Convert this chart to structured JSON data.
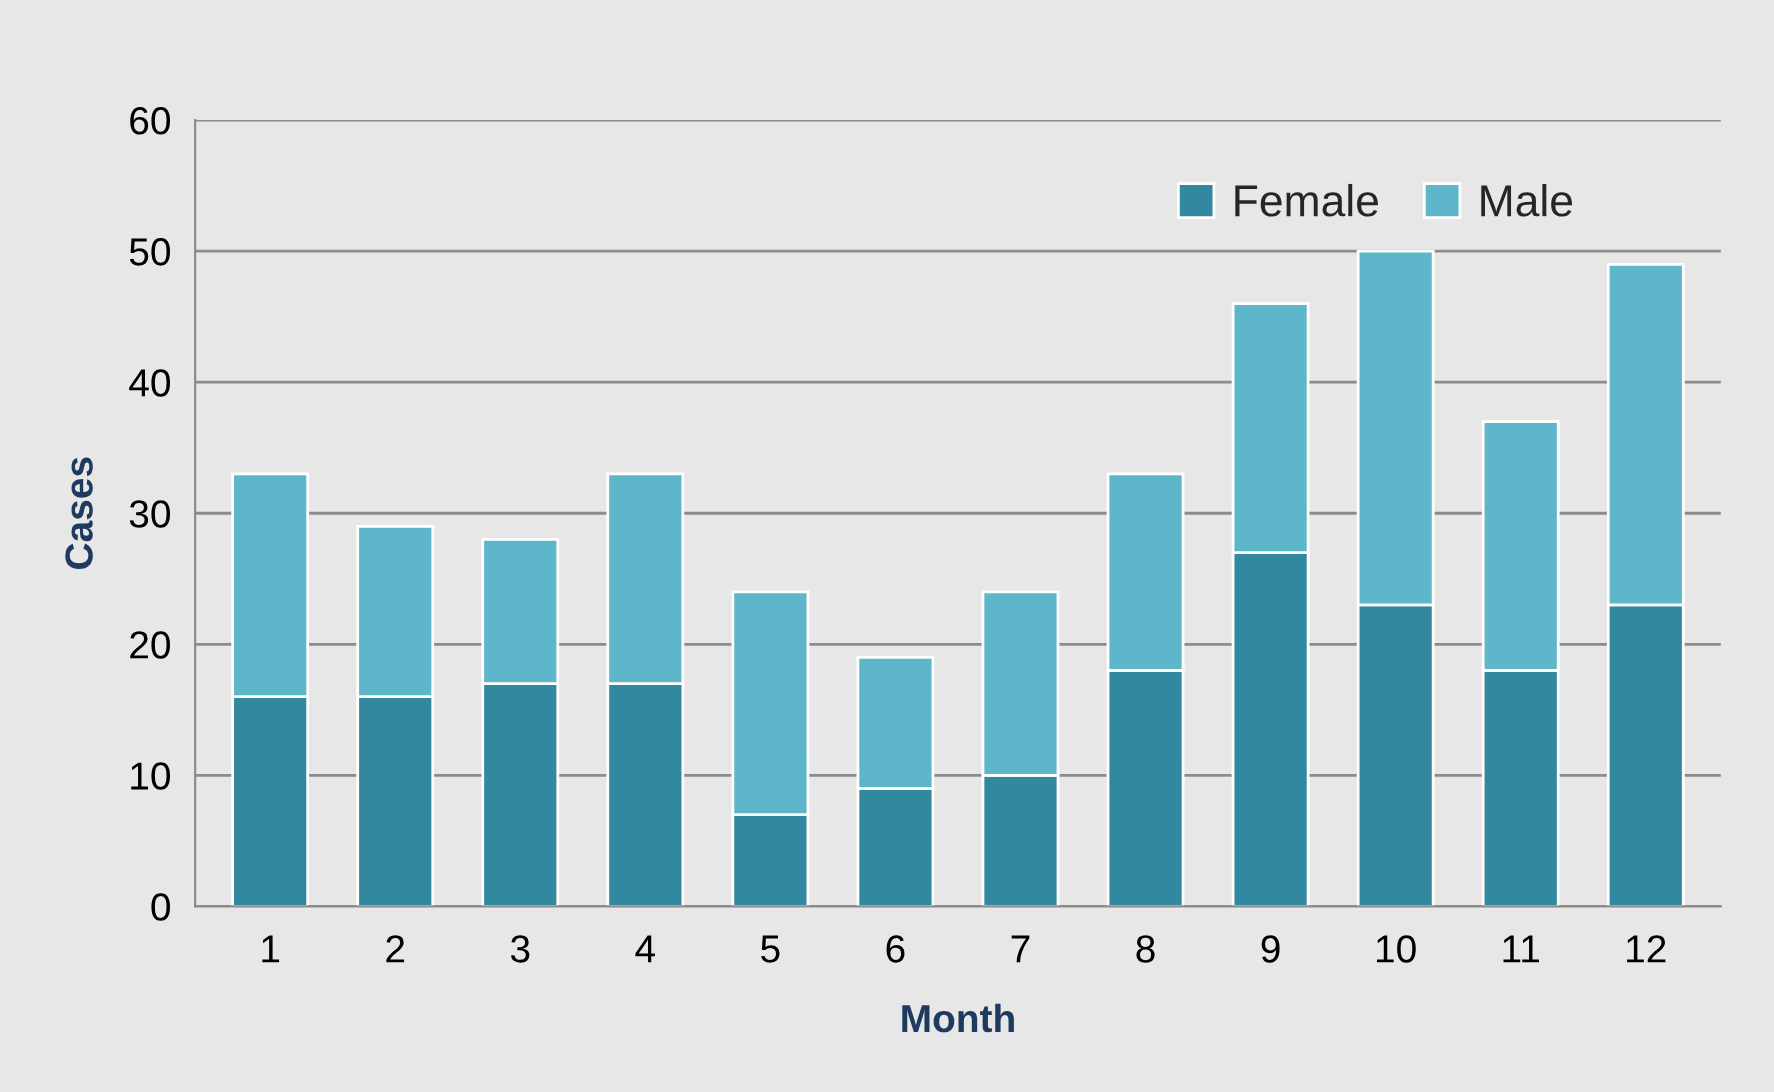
{
  "chart_data": {
    "type": "bar",
    "xlabel": "Month",
    "ylabel": "Cases",
    "categories": [
      "1",
      "2",
      "3",
      "4",
      "5",
      "6",
      "7",
      "8",
      "9",
      "10",
      "11",
      "12"
    ],
    "series": [
      {
        "name": "Female",
        "color": "#32889e",
        "values": [
          16,
          16,
          17,
          17,
          7,
          9,
          10,
          18,
          27,
          23,
          18,
          23
        ]
      },
      {
        "name": "Male",
        "color": "#5db6c9",
        "values": [
          17,
          13,
          11,
          16,
          17,
          10,
          14,
          15,
          19,
          27,
          19,
          26
        ]
      }
    ],
    "stacked": true,
    "ylim": [
      0,
      60
    ],
    "yticks": [
      0,
      10,
      20,
      30,
      40,
      50,
      60
    ],
    "grid": "y",
    "legend": "top right"
  }
}
